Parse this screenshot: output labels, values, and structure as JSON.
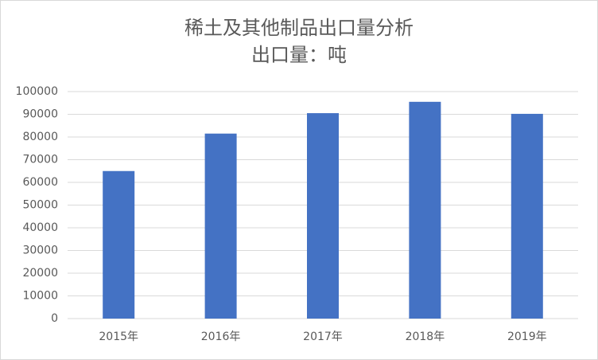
{
  "chart_data": {
    "type": "bar",
    "title": "稀土及其他制品出口量分析",
    "subtitle": "出口量：吨",
    "categories": [
      "2015年",
      "2016年",
      "2017年",
      "2018年",
      "2019年"
    ],
    "values": [
      65000,
      81500,
      90500,
      95500,
      90200
    ],
    "color": "#4472c4",
    "ylim": [
      0,
      100000
    ],
    "yticks": [
      0,
      10000,
      20000,
      30000,
      40000,
      50000,
      60000,
      70000,
      80000,
      90000,
      100000
    ],
    "grid": true
  }
}
